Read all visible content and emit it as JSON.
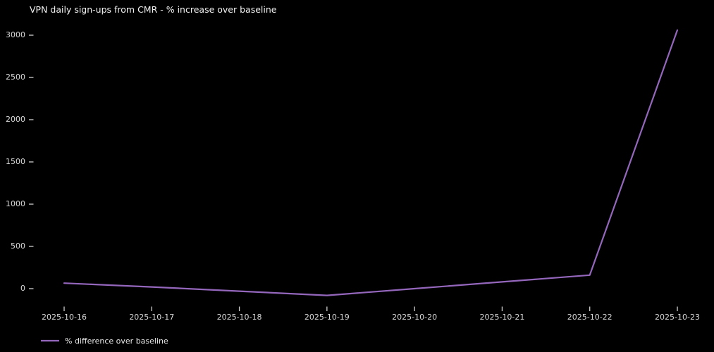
{
  "title": "VPN daily sign-ups from CMR - % increase over baseline",
  "colors": {
    "background": "#000000",
    "title_text": "#f2f2f2",
    "tick_text": "#d9d9d9",
    "tick_mark": "#cfcfcf",
    "line": "#9467bd"
  },
  "legend": {
    "label": "% difference over baseline"
  },
  "chart_data": {
    "type": "line",
    "title": "VPN daily sign-ups from CMR - % increase over baseline",
    "x": [
      "2025-10-16",
      "2025-10-17",
      "2025-10-18",
      "2025-10-19",
      "2025-10-20",
      "2025-10-21",
      "2025-10-22",
      "2025-10-23"
    ],
    "series": [
      {
        "name": "% difference over baseline",
        "color": "#9467bd",
        "values": [
          65,
          20,
          -30,
          -80,
          0,
          80,
          160,
          3060
        ]
      }
    ],
    "xlabel": "",
    "ylabel": "",
    "yticks": [
      0,
      500,
      1000,
      1500,
      2000,
      2500,
      3000
    ],
    "ylim": [
      -250,
      3120
    ],
    "grid": false,
    "spines": false,
    "legend_position": "lower left, below x-axis",
    "background": "#000000"
  }
}
